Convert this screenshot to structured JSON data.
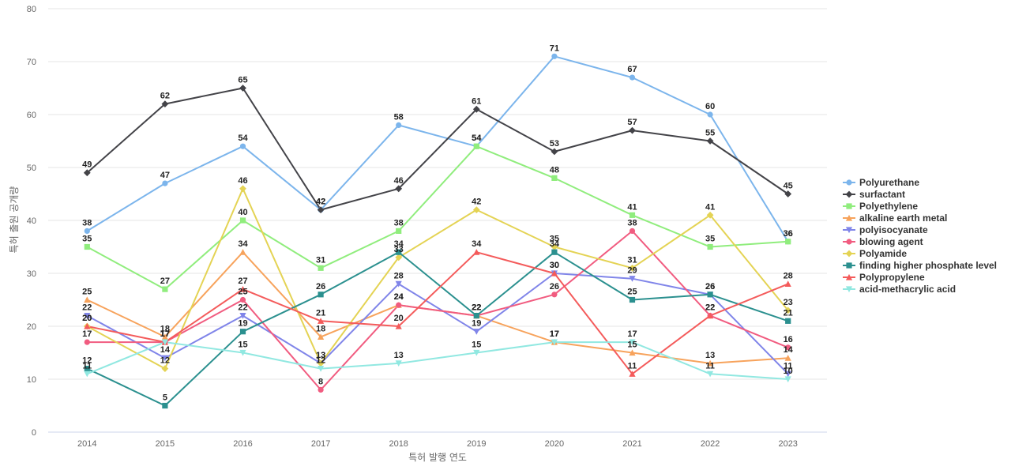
{
  "chart_data": {
    "type": "line",
    "title": "",
    "xlabel": "특허 발행 연도",
    "ylabel": "특허 출원 공개량",
    "ylim": [
      0,
      80
    ],
    "yticks": [
      0,
      10,
      20,
      30,
      40,
      50,
      60,
      70,
      80
    ],
    "grid": true,
    "legend_position": "right",
    "categories": [
      "2014",
      "2015",
      "2016",
      "2017",
      "2018",
      "2019",
      "2020",
      "2021",
      "2022",
      "2023"
    ],
    "series": [
      {
        "name": "Polyurethane",
        "color": "#7cb5ec",
        "marker": "circle",
        "values": [
          38,
          47,
          54,
          42,
          58,
          54,
          71,
          67,
          60,
          36
        ]
      },
      {
        "name": "surfactant",
        "color": "#434348",
        "marker": "diamond",
        "values": [
          49,
          62,
          65,
          42,
          46,
          61,
          53,
          57,
          55,
          45
        ]
      },
      {
        "name": "Polyethylene",
        "color": "#90ed7d",
        "marker": "square",
        "values": [
          35,
          27,
          40,
          31,
          38,
          54,
          48,
          41,
          35,
          36
        ]
      },
      {
        "name": "alkaline earth metal",
        "color": "#f7a35c",
        "marker": "triangle",
        "values": [
          25,
          18,
          34,
          18,
          24,
          22,
          17,
          15,
          13,
          14
        ]
      },
      {
        "name": "polyisocyanate",
        "color": "#8085e9",
        "marker": "triangle-down",
        "values": [
          22,
          14,
          22,
          13,
          28,
          19,
          30,
          29,
          26,
          11
        ]
      },
      {
        "name": "blowing agent",
        "color": "#f15c80",
        "marker": "circle",
        "values": [
          17,
          17,
          25,
          8,
          24,
          22,
          26,
          38,
          22,
          16
        ]
      },
      {
        "name": "Polyamide",
        "color": "#e4d354",
        "marker": "diamond",
        "values": [
          20,
          12,
          46,
          13,
          33,
          42,
          35,
          31,
          41,
          23
        ]
      },
      {
        "name": "finding higher phosphate level",
        "color": "#2b908f",
        "marker": "square",
        "values": [
          12,
          5,
          19,
          26,
          34,
          22,
          34,
          25,
          26,
          21
        ]
      },
      {
        "name": "Polypropylene",
        "color": "#f45b5b",
        "marker": "triangle",
        "values": [
          20,
          17,
          27,
          21,
          20,
          34,
          30,
          11,
          22,
          28
        ]
      },
      {
        "name": "acid-methacrylic acid",
        "color": "#91e8e1",
        "marker": "triangle-down",
        "values": [
          11,
          17,
          15,
          12,
          13,
          15,
          17,
          17,
          11,
          10
        ]
      }
    ]
  }
}
